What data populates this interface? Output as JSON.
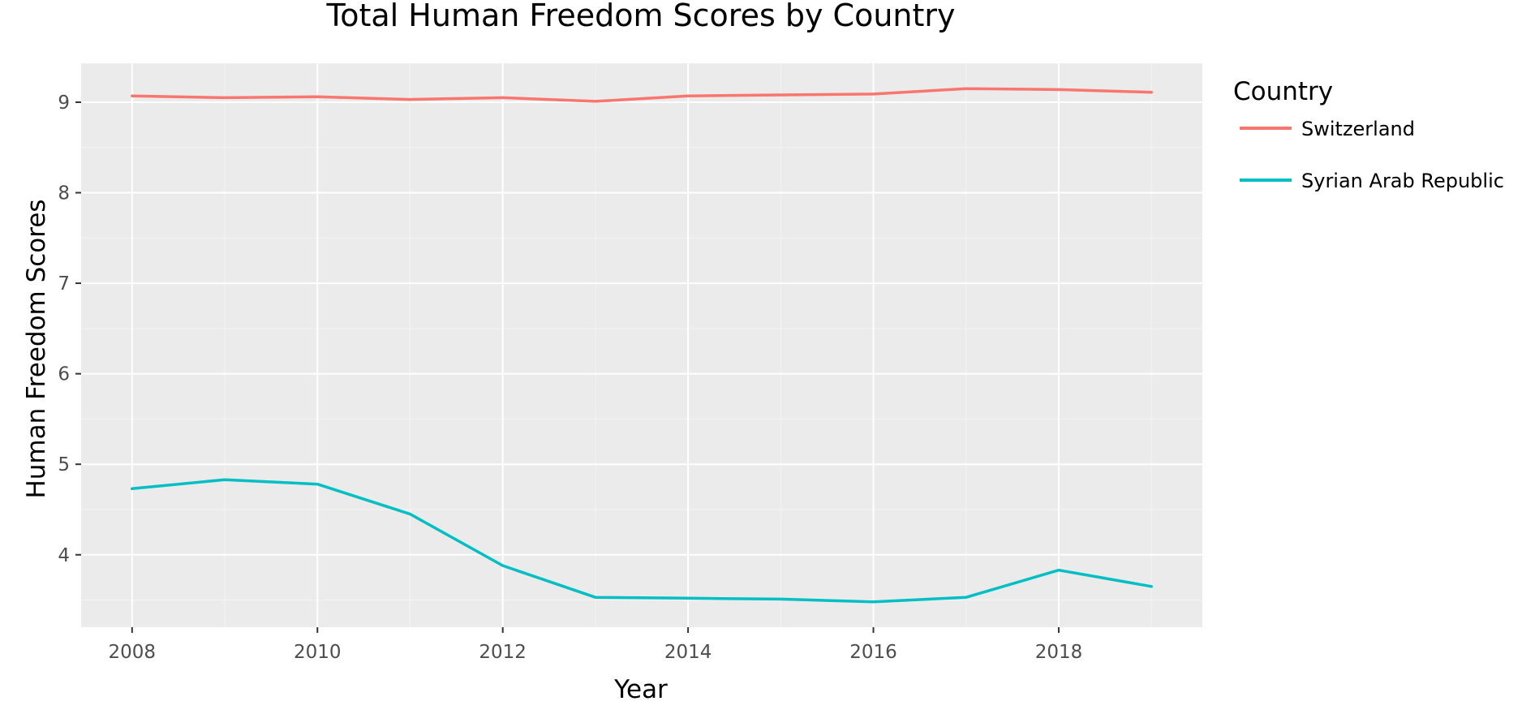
{
  "chart_data": {
    "type": "line",
    "title": "Total Human Freedom Scores by Country",
    "xlabel": "Year",
    "ylabel": "Human Freedom Scores",
    "x": [
      2008,
      2009,
      2010,
      2011,
      2012,
      2013,
      2014,
      2015,
      2016,
      2017,
      2018,
      2019
    ],
    "xlim": [
      2007.45,
      2019.55
    ],
    "ylim": [
      3.2,
      9.43
    ],
    "x_ticks": [
      2008,
      2010,
      2012,
      2014,
      2016,
      2018
    ],
    "y_ticks": [
      4,
      5,
      6,
      7,
      8,
      9
    ],
    "grid": true,
    "legend": {
      "title": "Country",
      "placement": "right"
    },
    "series": [
      {
        "name": "Switzerland",
        "color": "#f8766d",
        "values": [
          9.07,
          9.05,
          9.06,
          9.03,
          9.05,
          9.01,
          9.07,
          9.08,
          9.09,
          9.15,
          9.14,
          9.11
        ]
      },
      {
        "name": "Syrian Arab Republic",
        "color": "#00bfc4",
        "values": [
          4.73,
          4.83,
          4.78,
          4.45,
          3.88,
          3.53,
          3.52,
          3.51,
          3.48,
          3.53,
          3.83,
          3.65
        ]
      }
    ]
  }
}
